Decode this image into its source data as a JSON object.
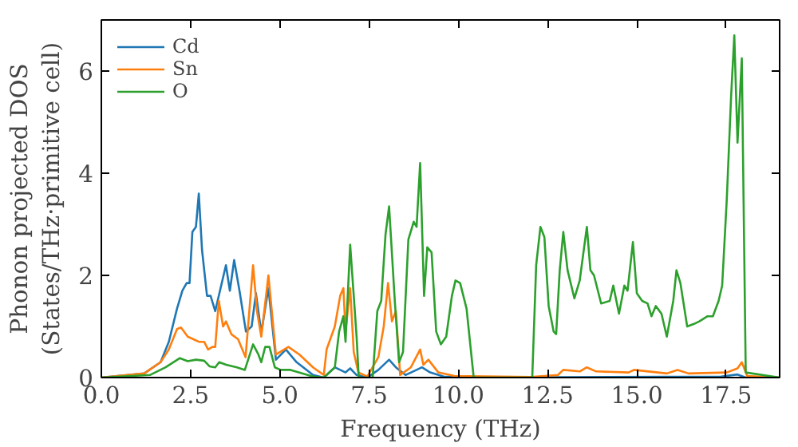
{
  "chart_data": {
    "type": "line",
    "xlabel": "Frequency (THz)",
    "ylabel": "Phonon projected DOS\n(States/THz·primitive cell)",
    "xlim": [
      0,
      19
    ],
    "ylim": [
      0,
      7
    ],
    "xticks": [
      {
        "value": 0,
        "label": "0.0"
      },
      {
        "value": 2.5,
        "label": "2.5"
      },
      {
        "value": 5,
        "label": "5.0"
      },
      {
        "value": 7.5,
        "label": "7.5"
      },
      {
        "value": 10,
        "label": "10.0"
      },
      {
        "value": 12.5,
        "label": "12.5"
      },
      {
        "value": 15,
        "label": "15.0"
      },
      {
        "value": 17.5,
        "label": "17.5"
      }
    ],
    "yticks": [
      0,
      2,
      4,
      6
    ],
    "grid": false,
    "legend": "top left",
    "line_style": "solid",
    "marker": "none",
    "series": [
      {
        "name": "Cd",
        "color": "#1f77b4",
        "x": [
          0,
          1.2,
          1.66,
          1.89,
          2.12,
          2.27,
          2.39,
          2.47,
          2.55,
          2.65,
          2.73,
          2.82,
          2.96,
          3.06,
          3.19,
          3.34,
          3.49,
          3.6,
          3.72,
          3.87,
          4.05,
          4.21,
          4.33,
          4.48,
          4.68,
          4.89,
          5.17,
          5.47,
          5.93,
          6.23,
          6.54,
          6.84,
          6.97,
          7.15,
          7.45,
          7.76,
          8.06,
          8.25,
          8.52,
          8.83,
          8.98,
          9.21,
          9.59,
          10.5,
          17.36,
          17.82,
          18.05,
          19
        ],
        "values": [
          0,
          0.08,
          0.3,
          0.7,
          1.35,
          1.7,
          1.85,
          1.85,
          2.85,
          2.95,
          3.6,
          2.5,
          1.6,
          1.6,
          1.3,
          1.75,
          2.2,
          1.7,
          2.3,
          1.7,
          0.9,
          1.0,
          1.65,
          0.88,
          1.75,
          0.35,
          0.55,
          0.3,
          0.05,
          0,
          0.2,
          0.1,
          0.18,
          0.05,
          0,
          0.15,
          0.35,
          0.2,
          0.05,
          0.15,
          0.2,
          0.1,
          0.02,
          0,
          0.02,
          0.06,
          0,
          0
        ]
      },
      {
        "name": "Sn",
        "color": "#ff7f0e",
        "x": [
          0,
          1.2,
          1.66,
          1.89,
          2.12,
          2.23,
          2.42,
          2.58,
          2.73,
          2.88,
          2.99,
          3.11,
          3.19,
          3.29,
          3.41,
          3.49,
          3.64,
          3.83,
          4.04,
          4.25,
          4.36,
          4.48,
          4.68,
          4.89,
          5.24,
          5.55,
          5.93,
          6.23,
          6.31,
          6.54,
          6.69,
          6.78,
          6.84,
          6.97,
          7.07,
          7.2,
          7.45,
          7.76,
          7.91,
          8.03,
          8.14,
          8.25,
          8.37,
          8.67,
          8.93,
          9.02,
          9.16,
          9.44,
          9.89,
          12.03,
          12.79,
          12.94,
          13.4,
          13.6,
          13.86,
          14.77,
          14.92,
          15.84,
          16.14,
          16.45,
          17.52,
          17.82,
          17.94,
          18.09,
          19
        ],
        "values": [
          0,
          0.08,
          0.3,
          0.55,
          0.95,
          0.98,
          0.8,
          0.75,
          0.7,
          0.7,
          0.55,
          0.6,
          0.6,
          1.5,
          1.0,
          1.1,
          0.85,
          0.75,
          0.4,
          2.2,
          1.3,
          0.8,
          2.0,
          0.45,
          0.6,
          0.45,
          0.2,
          0.05,
          0.55,
          1.0,
          1.6,
          1.75,
          0.9,
          1.75,
          0.5,
          0.1,
          0.02,
          0.4,
          1.0,
          1.85,
          1.1,
          1.3,
          0.05,
          0.2,
          0.55,
          0.25,
          0.35,
          0.1,
          0.03,
          0.01,
          0.05,
          0.15,
          0.12,
          0.2,
          0.12,
          0.1,
          0.15,
          0.08,
          0.15,
          0.08,
          0.1,
          0.18,
          0.3,
          0.03,
          0
        ]
      },
      {
        "name": "O",
        "color": "#2ca02c",
        "x": [
          0,
          1.36,
          1.8,
          2.2,
          2.42,
          2.65,
          2.88,
          3.03,
          3.19,
          3.3,
          3.5,
          3.8,
          4.02,
          4.25,
          4.4,
          4.48,
          4.59,
          4.71,
          4.86,
          5.02,
          5.3,
          5.93,
          6.23,
          6.54,
          6.66,
          6.78,
          6.84,
          6.97,
          7.03,
          7.15,
          7.21,
          7.6,
          7.73,
          7.84,
          7.96,
          8.06,
          8.22,
          8.34,
          8.45,
          8.6,
          8.75,
          8.83,
          8.93,
          9.04,
          9.13,
          9.25,
          9.38,
          9.51,
          9.66,
          9.82,
          9.92,
          10.05,
          10.23,
          10.43,
          12.07,
          12.18,
          12.3,
          12.41,
          12.53,
          12.67,
          12.74,
          12.84,
          12.94,
          13.06,
          13.25,
          13.4,
          13.6,
          13.7,
          13.8,
          14.0,
          14.24,
          14.34,
          14.5,
          14.65,
          14.74,
          14.89,
          15.0,
          15.15,
          15.3,
          15.41,
          15.53,
          15.69,
          15.84,
          16.02,
          16.11,
          16.22,
          16.41,
          16.6,
          16.75,
          16.98,
          17.13,
          17.29,
          17.39,
          17.52,
          17.64,
          17.73,
          17.82,
          17.94,
          18.05,
          19
        ],
        "values": [
          0,
          0.05,
          0.2,
          0.38,
          0.32,
          0.35,
          0.33,
          0.22,
          0.2,
          0.3,
          0.25,
          0.2,
          0.15,
          0.65,
          0.45,
          0.3,
          0.6,
          0.6,
          0.2,
          0.15,
          0.15,
          0.02,
          0,
          0.2,
          0.9,
          1.2,
          0.7,
          2.6,
          2.0,
          0.8,
          0,
          0,
          1.3,
          1.5,
          2.8,
          3.35,
          1.5,
          0.3,
          0.5,
          2.7,
          3.05,
          2.95,
          4.2,
          1.6,
          2.55,
          2.45,
          0.9,
          0.65,
          0.8,
          1.6,
          1.9,
          1.85,
          1.35,
          0,
          0,
          2.2,
          2.95,
          2.75,
          1.4,
          0.9,
          0.85,
          2.1,
          2.85,
          2.1,
          1.55,
          1.9,
          2.95,
          2.1,
          2.0,
          1.45,
          1.5,
          1.8,
          1.25,
          1.8,
          1.7,
          2.65,
          1.65,
          1.5,
          1.45,
          1.2,
          1.4,
          1.25,
          0.8,
          1.5,
          2.1,
          1.85,
          1.0,
          1.05,
          1.1,
          1.2,
          1.2,
          1.5,
          1.8,
          3.5,
          5.5,
          6.7,
          4.6,
          6.25,
          0.1,
          0
        ]
      }
    ]
  }
}
